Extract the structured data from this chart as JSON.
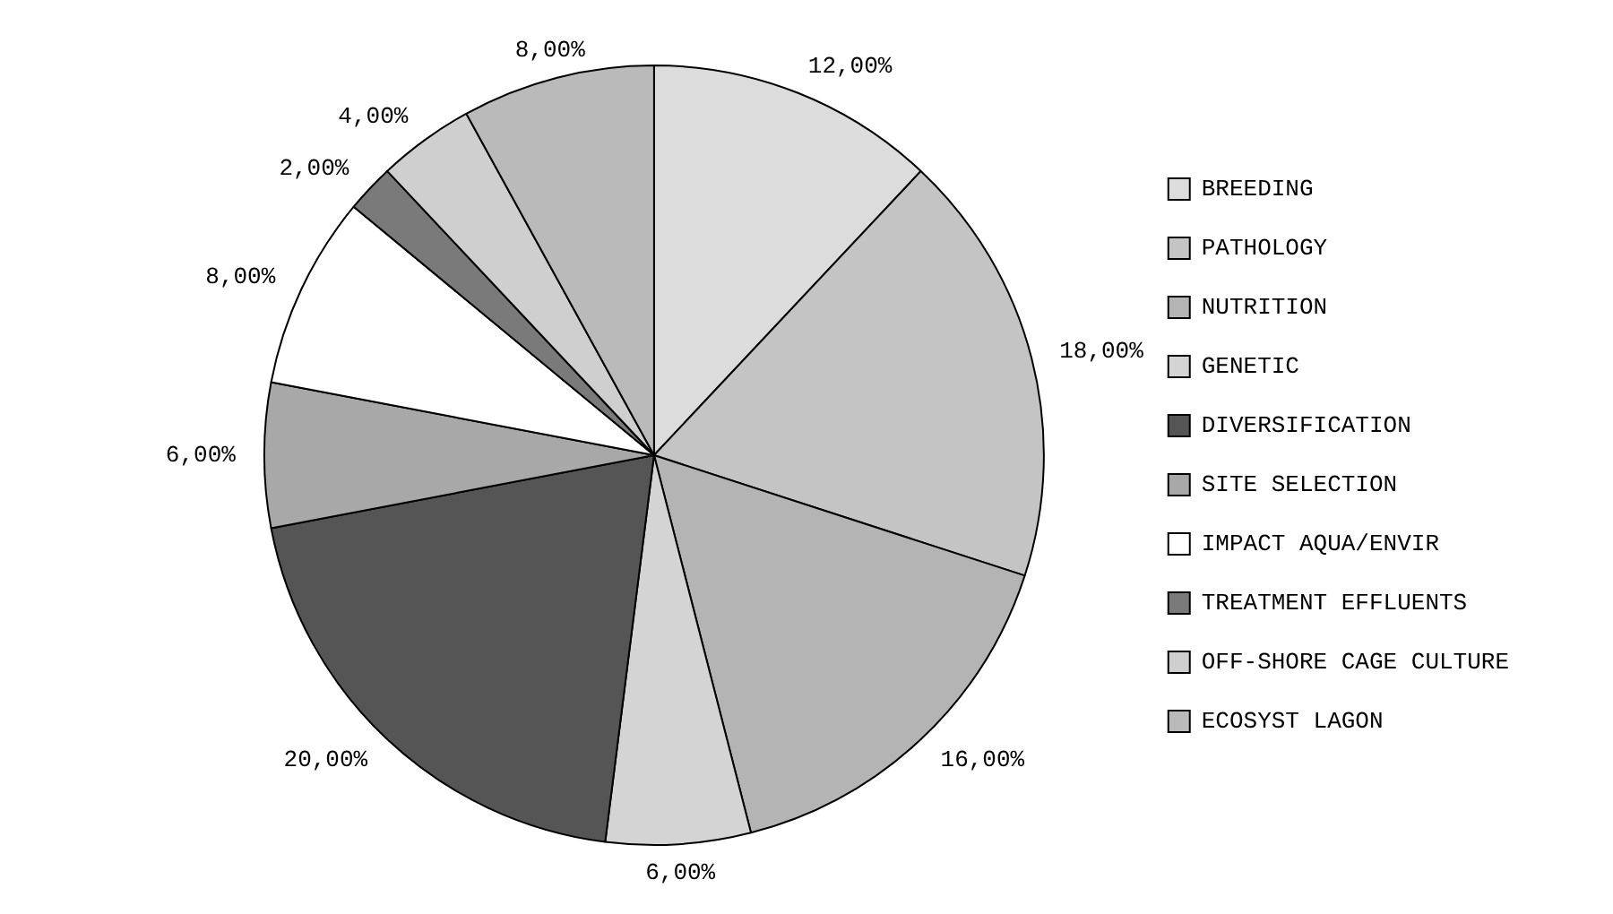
{
  "chart_data": {
    "type": "pie",
    "categories": [
      "BREEDING",
      "PATHOLOGY",
      "NUTRITION",
      "GENETIC",
      "DIVERSIFICATION",
      "SITE SELECTION",
      "IMPACT AQUA/ENVIR",
      "TREATMENT EFFLUENTS",
      "OFF-SHORE CAGE CULTURE",
      "ECOSYST LAGON"
    ],
    "values": [
      12,
      18,
      16,
      6,
      20,
      6,
      8,
      2,
      4,
      8
    ],
    "value_labels": [
      "12,00%",
      "18,00%",
      "16,00%",
      "6,00%",
      "20,00%",
      "6,00%",
      "8,00%",
      "2,00%",
      "4,00%",
      "8,00%"
    ],
    "colors": [
      "#dcdcdc",
      "#c4c4c4",
      "#b4b4b4",
      "#d4d4d4",
      "#555555",
      "#a8a8a8",
      "#ffffff",
      "#7a7a7a",
      "#cfcfcf",
      "#bababa"
    ],
    "legend": "right"
  }
}
